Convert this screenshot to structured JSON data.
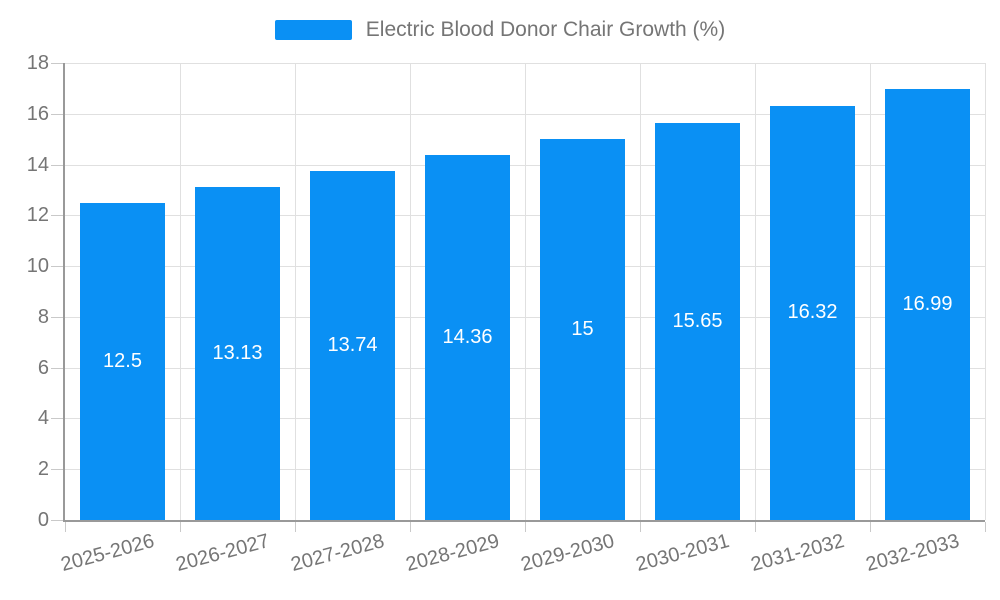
{
  "legend": {
    "label": "Electric Blood Donor Chair Growth (%)"
  },
  "chart_data": {
    "type": "bar",
    "title": "Electric Blood Donor Chair Growth (%)",
    "categories": [
      "2025-2026",
      "2026-2027",
      "2027-2028",
      "2028-2029",
      "2029-2030",
      "2030-2031",
      "2031-2032",
      "2032-2033"
    ],
    "values": [
      12.5,
      13.13,
      13.74,
      14.36,
      15,
      15.65,
      16.32,
      16.99
    ],
    "value_labels": [
      "12.5",
      "13.13",
      "13.74",
      "14.36",
      "15",
      "15.65",
      "16.32",
      "16.99"
    ],
    "xlabel": "",
    "ylabel": "",
    "ylim": [
      0,
      18
    ],
    "yticks": [
      0,
      2,
      4,
      6,
      8,
      10,
      12,
      14,
      16,
      18
    ],
    "grid": true,
    "legend_position": "top",
    "x_label_rotation_deg": -15,
    "colors": {
      "bar": "#0a90f4",
      "value_text": "#ffffff",
      "axis": "#999999",
      "grid": "#e0e0e0",
      "text": "#757575",
      "background": "#ffffff"
    }
  }
}
